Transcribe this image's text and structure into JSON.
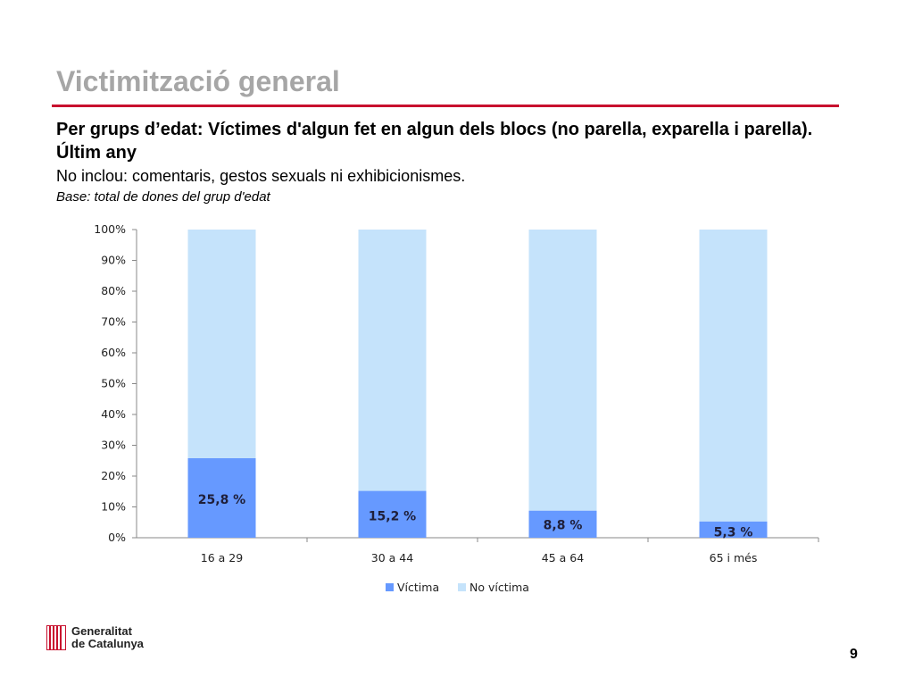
{
  "header": {
    "title": "Victimització general",
    "subtitle": "Per grups d’edat: Víctimes d'algun fet en algun dels blocs (no parella, exparella i parella). Últim any",
    "note": "No inclou: comentaris, gestos sexuals ni exhibicionismes.",
    "base": "Base: total de dones del grup d'edat"
  },
  "chart_data": {
    "type": "bar",
    "stacked": true,
    "categories": [
      "16 a 29",
      "30 a 44",
      "45 a 64",
      "65 i més"
    ],
    "series": [
      {
        "name": "Víctima",
        "values": [
          25.8,
          15.2,
          8.8,
          5.3
        ],
        "color": "#6699ff"
      },
      {
        "name": "No víctima",
        "values": [
          74.2,
          84.8,
          91.2,
          94.7
        ],
        "color": "#c5e3fb"
      }
    ],
    "data_labels": [
      "25,8 %",
      "15,2 %",
      "8,8 %",
      "5,3 %"
    ],
    "y_ticks": [
      "0%",
      "10%",
      "20%",
      "30%",
      "40%",
      "50%",
      "60%",
      "70%",
      "80%",
      "90%",
      "100%"
    ],
    "ylim": [
      0,
      100
    ],
    "legend": "bottom",
    "grid": false
  },
  "footer": {
    "logo_line1": "Generalitat",
    "logo_line2": "de Catalunya",
    "page_number": "9"
  }
}
